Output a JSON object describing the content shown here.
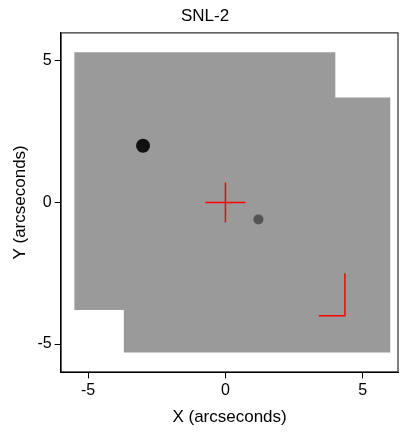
{
  "chart_data": {
    "type": "scatter",
    "title": "SNL-2",
    "x_label": "X (arcseconds)",
    "y_label": "Y (arcseconds)",
    "xlim": [
      -6,
      6.3
    ],
    "ylim": [
      -6,
      6
    ],
    "xticks": [
      -5,
      0,
      5
    ],
    "yticks": [
      -5,
      0,
      5
    ],
    "grid": false,
    "field": {
      "x": [
        -5.5,
        4.0,
        4.0,
        6.0,
        6.0,
        -3.7,
        -3.7,
        -5.5
      ],
      "y": [
        5.3,
        5.3,
        3.7,
        3.7,
        -5.3,
        -5.3,
        -3.8,
        -3.8
      ],
      "color": "#9a9a9a"
    },
    "sources": {
      "x": [
        -3.0,
        1.2
      ],
      "y": [
        2.0,
        -0.6
      ],
      "colors": [
        "#111111",
        "#555555"
      ]
    },
    "position": {
      "x": [
        0
      ],
      "y": [
        0
      ],
      "color": "#ff0000",
      "marker": "cross"
    },
    "bracket": {
      "x": [
        3.4,
        4.35,
        4.35
      ],
      "y": [
        -4.0,
        -4.0,
        -2.5
      ],
      "color": "#ff0000"
    }
  }
}
